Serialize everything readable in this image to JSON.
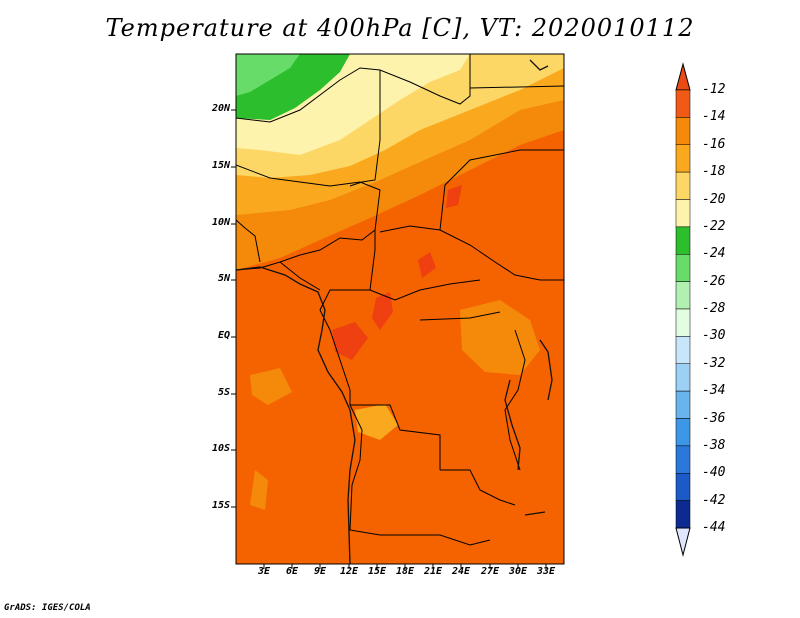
{
  "title": "Temperature at 400hPa [C], VT: 2020010112",
  "credit": "GrADS: IGES/COLA",
  "lat_ticks": [
    "20N",
    "15N",
    "10N",
    "5N",
    "EQ",
    "5S",
    "10S",
    "15S"
  ],
  "lon_ticks": [
    "3E",
    "6E",
    "9E",
    "12E",
    "15E",
    "18E",
    "21E",
    "24E",
    "27E",
    "30E",
    "33E"
  ],
  "colorbar": {
    "levels": [
      "-12",
      "-14",
      "-16",
      "-18",
      "-20",
      "-22",
      "-24",
      "-26",
      "-28",
      "-30",
      "-32",
      "-34",
      "-36",
      "-38",
      "-40",
      "-42",
      "-44"
    ],
    "colors": [
      "#f05a16",
      "#f58a0a",
      "#faa81e",
      "#fdd765",
      "#fef3ac",
      "#2cbe2c",
      "#68dc68",
      "#b2f0b2",
      "#e3fde3",
      "#c8e6fa",
      "#9cd0f5",
      "#6ab4ee",
      "#3e96e6",
      "#2a78dc",
      "#1c5ac8",
      "#0c2b90"
    ],
    "top_arrow_color": "#e84c14",
    "bottom_arrow_color": "#dfe6fe"
  },
  "map_colors": {
    "dominant": "#f56200",
    "band1": "#f58a0a",
    "band2": "#faa81e",
    "band3": "#fdd765",
    "band4": "#fef3ac",
    "green1": "#2cbe2c",
    "green2": "#68dc68",
    "warm_patch": "#ee4010"
  }
}
